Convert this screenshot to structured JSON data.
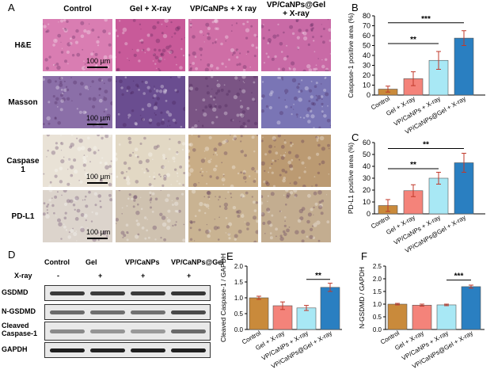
{
  "panelA": {
    "letter": "A",
    "columns": [
      "Control",
      "Gel + X-ray",
      "VP/CaNPs + X ray",
      "VP/CaNPs@Gel\n+ X-ray"
    ],
    "rows": [
      "H&E",
      "Masson",
      "Caspase 1",
      "PD-L1"
    ],
    "scalebar_label": "100 µm",
    "tile_colors": {
      "H&E": [
        "#d97db2",
        "#c85a99",
        "#cf6ea6",
        "#c96aa6"
      ],
      "Masson": [
        "#8b6fa8",
        "#6a4d90",
        "#7a5484",
        "#7a75b5"
      ],
      "Caspase 1": [
        "#e9e2d6",
        "#e2d8c4",
        "#c9ad86",
        "#bb9a72"
      ],
      "PD-L1": [
        "#dcd4cc",
        "#cfc2b0",
        "#c9b392",
        "#c3ad90"
      ]
    }
  },
  "panelD": {
    "letter": "D",
    "lane_labels": [
      "Control",
      "Gel",
      "VP/CaNPs",
      "VP/CaNPs@Gel"
    ],
    "xray_label": "X-ray",
    "xray_marks": [
      "-",
      "+",
      "+",
      "+"
    ],
    "blots": [
      "GSDMD",
      "N-GSDMD",
      "Cleaved\nCaspase-1",
      "GAPDH"
    ]
  },
  "chart_data": [
    {
      "panel": "B",
      "type": "bar",
      "ylabel": "Caspase-1 positive area (%)",
      "categories": [
        "Control",
        "Gel + X-ray",
        "VP/CaNPs + X-ray",
        "VP/CaNPs@Gel + X-ray"
      ],
      "values": [
        6,
        16.5,
        35,
        57.5
      ],
      "errors": [
        3,
        7,
        9,
        7.5
      ],
      "colors": [
        "#c98a3b",
        "#f4837a",
        "#a8e8f5",
        "#2a7fc1"
      ],
      "ylim": [
        0,
        80
      ],
      "yticks": [
        0,
        10,
        20,
        30,
        40,
        50,
        60,
        70,
        80
      ],
      "significance": [
        {
          "from": 0,
          "to": 2,
          "label": "**",
          "y": 52
        },
        {
          "from": 0,
          "to": 3,
          "label": "***",
          "y": 73
        }
      ]
    },
    {
      "panel": "C",
      "type": "bar",
      "ylabel": "PD-L1 positive area (%)",
      "categories": [
        "Control",
        "Gel + X-ray",
        "VP/CaNPs + X-ray",
        "VP/CaNPs@Gel + X-ray"
      ],
      "values": [
        7,
        19.5,
        30,
        43
      ],
      "errors": [
        5,
        5,
        5,
        8
      ],
      "colors": [
        "#c98a3b",
        "#f4837a",
        "#a8e8f5",
        "#2a7fc1"
      ],
      "ylim": [
        0,
        60
      ],
      "yticks": [
        0,
        10,
        20,
        30,
        40,
        50,
        60
      ],
      "significance": [
        {
          "from": 0,
          "to": 2,
          "label": "**",
          "y": 38
        },
        {
          "from": 0,
          "to": 3,
          "label": "**",
          "y": 55
        }
      ]
    },
    {
      "panel": "E",
      "type": "bar",
      "ylabel": "Cleaved Caspase-1 / GAPDH",
      "categories": [
        "Control",
        "Gel + X-ray",
        "VP/CaNPs + X-ray",
        "VP/CaNPs@Gel + X-ray"
      ],
      "values": [
        1.0,
        0.75,
        0.68,
        1.33
      ],
      "errors": [
        0.05,
        0.12,
        0.08,
        0.13
      ],
      "colors": [
        "#c98a3b",
        "#f4837a",
        "#a8e8f5",
        "#2a7fc1"
      ],
      "ylim": [
        0,
        2.0
      ],
      "yticks": [
        0.0,
        0.5,
        1.0,
        1.5,
        2.0
      ],
      "significance": [
        {
          "from": 2,
          "to": 3,
          "label": "**",
          "y": 1.58
        }
      ]
    },
    {
      "panel": "F",
      "type": "bar",
      "ylabel": "N-GSDMD / GAPDH",
      "categories": [
        "Control",
        "Gel + X-ray",
        "VP/CaNPs + X-ray",
        "VP/CaNPs@Gel + X-ray"
      ],
      "values": [
        1.0,
        0.96,
        0.97,
        1.69
      ],
      "errors": [
        0.03,
        0.04,
        0.03,
        0.06
      ],
      "colors": [
        "#c98a3b",
        "#f4837a",
        "#a8e8f5",
        "#2a7fc1"
      ],
      "ylim": [
        0,
        2.5
      ],
      "yticks": [
        0.0,
        0.5,
        1.0,
        1.5,
        2.0,
        2.5
      ],
      "significance": [
        {
          "from": 2,
          "to": 3,
          "label": "***",
          "y": 1.95
        }
      ]
    }
  ]
}
